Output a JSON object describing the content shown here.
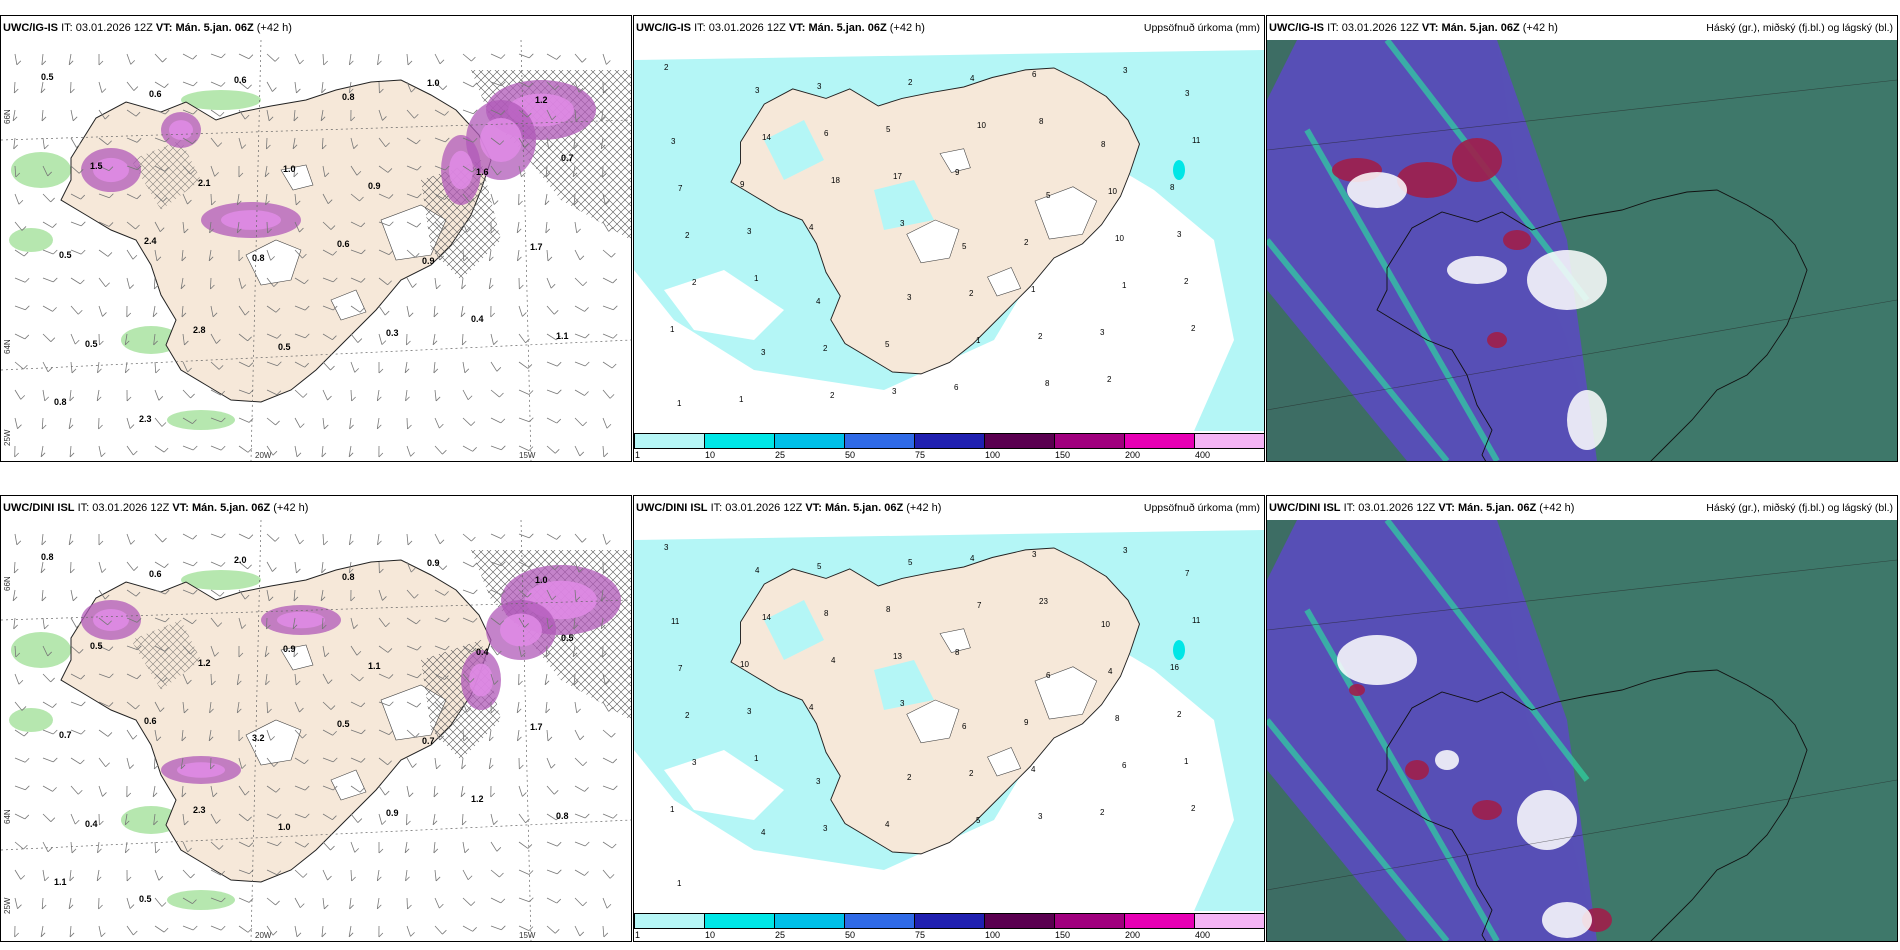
{
  "panels": [
    {
      "id": "top-left",
      "model": "UWC/IG-IS",
      "it_label": "IT:",
      "it": "03.01.2026 12Z",
      "vt_label": "VT:",
      "vt": "Mán. 5.jan. 06Z",
      "lead": "(+42 h)",
      "right": "",
      "labels": [
        "0.5",
        "0.6",
        "0.6",
        "0.8",
        "1.0",
        "1.2",
        "1.5",
        "2.1",
        "1.0",
        "0.9",
        "1.6",
        "0.7",
        "0.5",
        "2.4",
        "0.8",
        "0.6",
        "0.9",
        "1.7",
        "0.5",
        "2.8",
        "0.5",
        "0.3",
        "0.4",
        "1.1",
        "0.8",
        "2.3"
      ]
    },
    {
      "id": "top-mid",
      "model": "UWC/IG-IS",
      "it_label": "IT:",
      "it": "03.01.2026 12Z",
      "vt_label": "VT:",
      "vt": "Mán. 5.jan. 06Z",
      "lead": "(+42 h)",
      "right": "Uppsöfnuð úrkoma (mm)",
      "labels": [
        "2",
        "3",
        "3",
        "2",
        "4",
        "6",
        "3",
        "3",
        "3",
        "14",
        "6",
        "5",
        "10",
        "8",
        "8",
        "11",
        "7",
        "9",
        "18",
        "17",
        "9",
        "5",
        "10",
        "8",
        "2",
        "3",
        "4",
        "3",
        "5",
        "2",
        "10",
        "3",
        "2",
        "1",
        "4",
        "3",
        "2",
        "1",
        "1",
        "2",
        "1",
        "3",
        "2",
        "5",
        "1",
        "2",
        "3",
        "2",
        "1",
        "1",
        "2",
        "3",
        "6",
        "8",
        "2"
      ]
    },
    {
      "id": "top-right",
      "model": "UWC/IG-IS",
      "it_label": "IT:",
      "it": "03.01.2026 12Z",
      "vt_label": "VT:",
      "vt": "Mán. 5.jan. 06Z",
      "lead": "(+42 h)",
      "right": "Háský (gr.), miðský (fj.bl.) og lágský (bl.)",
      "labels": []
    },
    {
      "id": "bottom-left",
      "model": "UWC/DINI ISL",
      "it_label": "IT:",
      "it": "03.01.2026 12Z",
      "vt_label": "VT:",
      "vt": "Mán. 5.jan. 06Z",
      "lead": "(+42 h)",
      "right": "",
      "labels": [
        "0.8",
        "0.6",
        "2.0",
        "0.8",
        "0.9",
        "1.0",
        "0.5",
        "1.2",
        "0.9",
        "1.1",
        "0.4",
        "0.5",
        "0.7",
        "0.6",
        "3.2",
        "0.5",
        "0.7",
        "1.7",
        "0.4",
        "2.3",
        "1.0",
        "0.9",
        "1.2",
        "0.8",
        "1.1",
        "0.5"
      ]
    },
    {
      "id": "bottom-mid",
      "model": "UWC/DINI ISL",
      "it_label": "IT:",
      "it": "03.01.2026 12Z",
      "vt_label": "VT:",
      "vt": "Mán. 5.jan. 06Z",
      "lead": "(+42 h)",
      "right": "Uppsöfnuð úrkoma (mm)",
      "labels": [
        "3",
        "4",
        "5",
        "5",
        "4",
        "3",
        "3",
        "7",
        "11",
        "14",
        "8",
        "8",
        "7",
        "23",
        "10",
        "11",
        "7",
        "10",
        "4",
        "13",
        "8",
        "6",
        "4",
        "16",
        "2",
        "3",
        "4",
        "3",
        "6",
        "9",
        "8",
        "2",
        "3",
        "1",
        "3",
        "2",
        "2",
        "4",
        "6",
        "1",
        "1",
        "4",
        "3",
        "4",
        "5",
        "3",
        "2",
        "2",
        "1"
      ]
    },
    {
      "id": "bottom-right",
      "model": "UWC/DINI ISL",
      "it_label": "IT:",
      "it": "03.01.2026 12Z",
      "vt_label": "VT:",
      "vt": "Mán. 5.jan. 06Z",
      "lead": "(+42 h)",
      "right": "Háský (gr.), miðský (fj.bl.) og lágský (bl.)",
      "labels": []
    }
  ],
  "colorbar": {
    "ticks": [
      "1",
      "10",
      "25",
      "50",
      "75",
      "100",
      "150",
      "200",
      "400"
    ],
    "colors": [
      "#b6f6f6",
      "#00e6e6",
      "#00c0e8",
      "#2f6ae6",
      "#2020b0",
      "#5a0050",
      "#a0007e",
      "#e600b4",
      "#f4b4f4"
    ]
  },
  "axes": {
    "lat": [
      "66N",
      "64N",
      "25W"
    ],
    "lon": [
      "20W",
      "15W"
    ]
  },
  "colors": {
    "land": "#f6e8d9",
    "precip_light": "#b4f6f6",
    "snow_purple": "#b05ab8",
    "snow_pink": "#e08be6",
    "green": "#7ad36e",
    "cloud_bg": "#3d6d64",
    "cloud_blue": "#5a4bbf",
    "cloud_red": "#a01e4a",
    "cloud_teal": "#2fd6a2"
  }
}
